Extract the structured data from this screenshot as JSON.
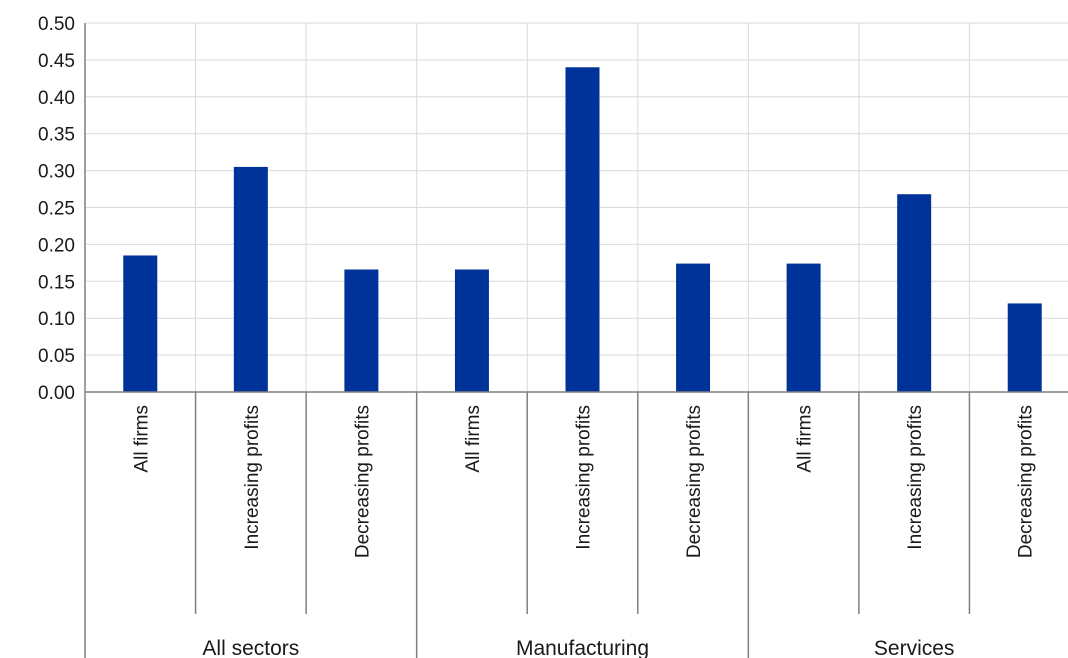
{
  "chart_data": {
    "type": "bar",
    "groups": [
      {
        "label": "All sectors",
        "categories": [
          "All firms",
          "Increasing profits",
          "Decreasing profits"
        ],
        "values": [
          0.185,
          0.305,
          0.166
        ]
      },
      {
        "label": "Manufacturing",
        "categories": [
          "All firms",
          "Increasing profits",
          "Decreasing profits"
        ],
        "values": [
          0.166,
          0.44,
          0.174
        ]
      },
      {
        "label": "Services",
        "categories": [
          "All firms",
          "Increasing profits",
          "Decreasing profits"
        ],
        "values": [
          0.174,
          0.268,
          0.12
        ]
      }
    ],
    "y_ticks": [
      "0.00",
      "0.05",
      "0.10",
      "0.15",
      "0.20",
      "0.25",
      "0.30",
      "0.35",
      "0.40",
      "0.45",
      "0.50"
    ],
    "ylim": [
      0,
      0.5
    ],
    "grid": true,
    "bar_color": "#003399",
    "title": "",
    "xlabel": "",
    "ylabel": ""
  }
}
